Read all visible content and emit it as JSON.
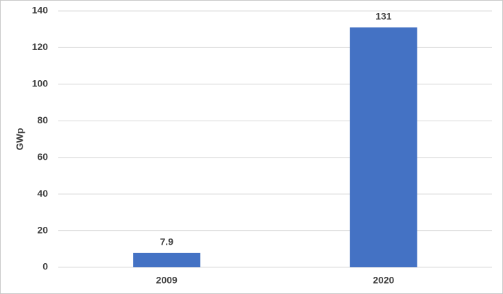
{
  "chart_data": {
    "type": "bar",
    "y_label": "GWp",
    "categories": [
      "2009",
      "2020"
    ],
    "values": [
      7.9,
      131
    ],
    "color": "#4472c4",
    "ylim": [
      0,
      140
    ],
    "yticks": [
      0,
      20,
      40,
      60,
      80,
      100,
      120,
      140
    ],
    "grid": true,
    "value_labels_shown": true
  }
}
